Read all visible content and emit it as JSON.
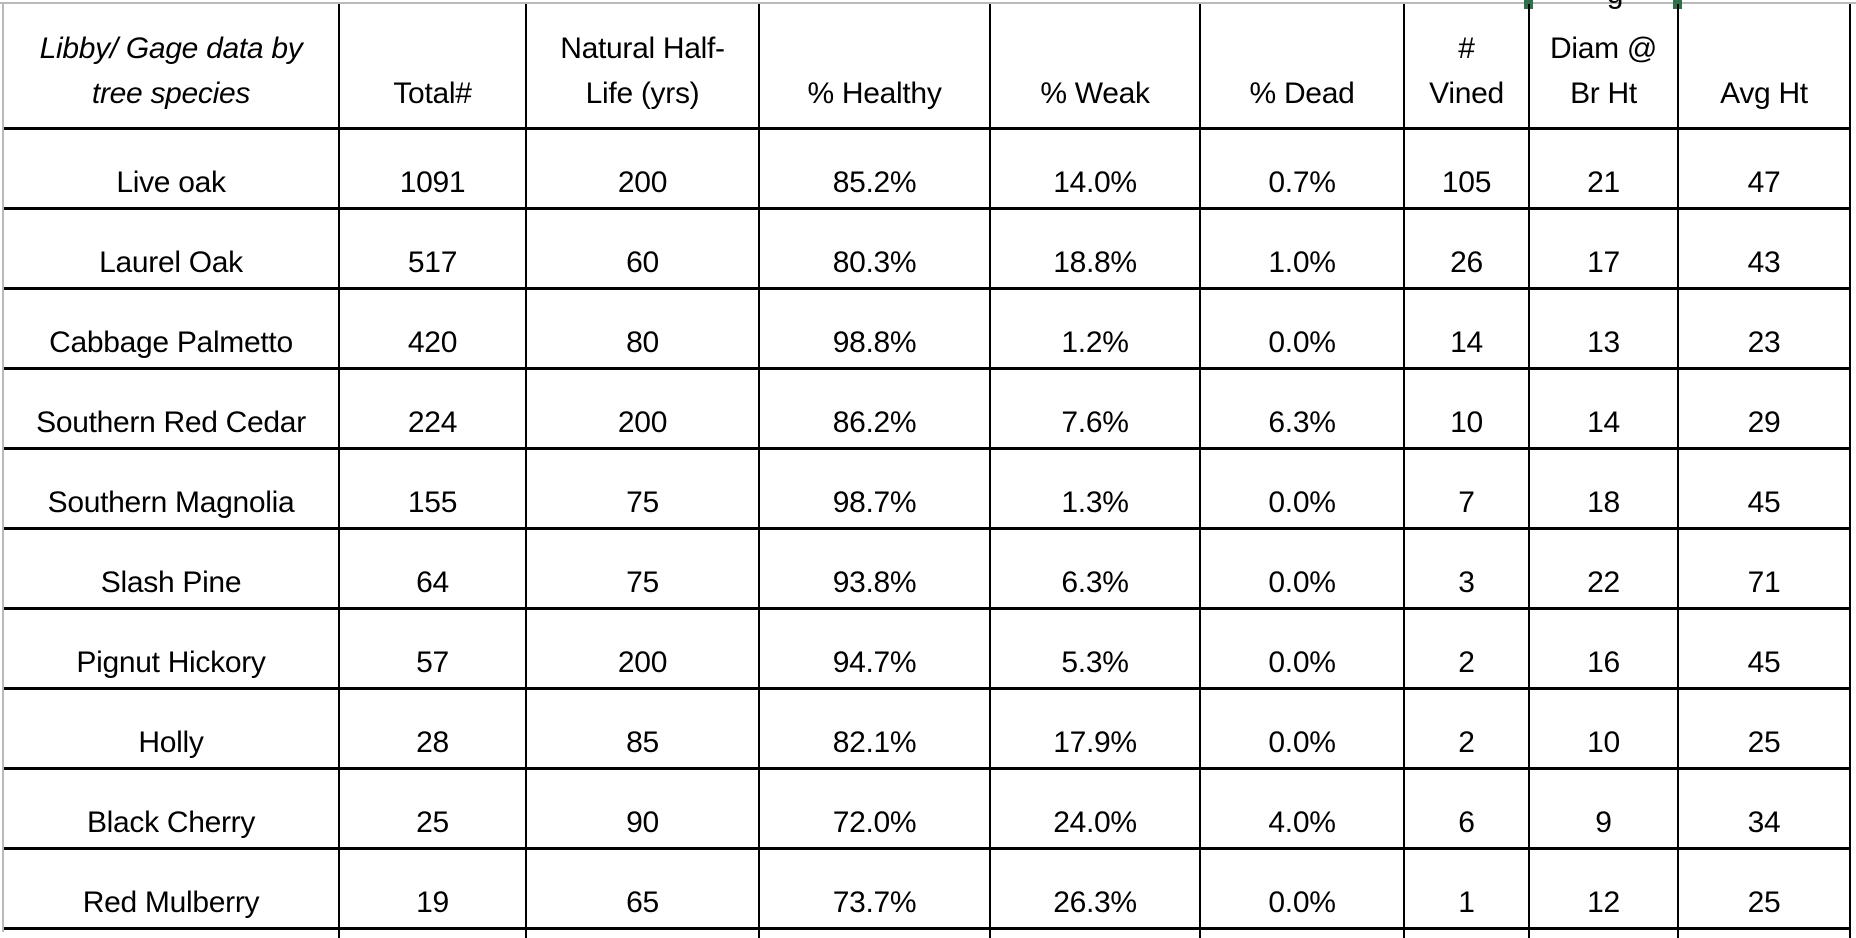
{
  "table": {
    "columns": [
      {
        "id": "species",
        "label": "Libby/ Gage data by\ntree species",
        "italic": true
      },
      {
        "id": "total_count",
        "label": "Total#"
      },
      {
        "id": "half_life",
        "label": "Natural Half-\nLife (yrs)"
      },
      {
        "id": "pct_healthy",
        "label": "% Healthy"
      },
      {
        "id": "pct_weak",
        "label": "% Weak"
      },
      {
        "id": "pct_dead",
        "label": "% Dead"
      },
      {
        "id": "num_vined",
        "label": "#\nVined"
      },
      {
        "id": "diam_br_ht",
        "label": "Diam @\nBr Ht"
      },
      {
        "id": "avg_ht",
        "label": "Avg Ht"
      }
    ],
    "rows": [
      [
        "Live oak",
        "1091",
        "200",
        "85.2%",
        "14.0%",
        "0.7%",
        "105",
        "21",
        "47"
      ],
      [
        "Laurel Oak",
        "517",
        "60",
        "80.3%",
        "18.8%",
        "1.0%",
        "26",
        "17",
        "43"
      ],
      [
        "Cabbage Palmetto",
        "420",
        "80",
        "98.8%",
        "1.2%",
        "0.0%",
        "14",
        "13",
        "23"
      ],
      [
        "Southern Red Cedar",
        "224",
        "200",
        "86.2%",
        "7.6%",
        "6.3%",
        "10",
        "14",
        "29"
      ],
      [
        "Southern Magnolia",
        "155",
        "75",
        "98.7%",
        "1.3%",
        "0.0%",
        "7",
        "18",
        "45"
      ],
      [
        "Slash Pine",
        "64",
        "75",
        "93.8%",
        "6.3%",
        "0.0%",
        "3",
        "22",
        "71"
      ],
      [
        "Pignut Hickory",
        "57",
        "200",
        "94.7%",
        "5.3%",
        "0.0%",
        "2",
        "16",
        "45"
      ],
      [
        "Holly",
        "28",
        "85",
        "82.1%",
        "17.9%",
        "0.0%",
        "2",
        "10",
        "25"
      ],
      [
        "Black Cherry",
        "25",
        "90",
        "72.0%",
        "24.0%",
        "4.0%",
        "6",
        "9",
        "34"
      ],
      [
        "Red Mulberry",
        "19",
        "65",
        "73.7%",
        "26.3%",
        "0.0%",
        "1",
        "12",
        "25"
      ]
    ],
    "clipped_row_above": {
      "visible_glyph": "g"
    }
  },
  "colors": {
    "selection_green": "#2e7049",
    "gridline_gray": "#b9b9b9",
    "table_border": "#000000"
  }
}
